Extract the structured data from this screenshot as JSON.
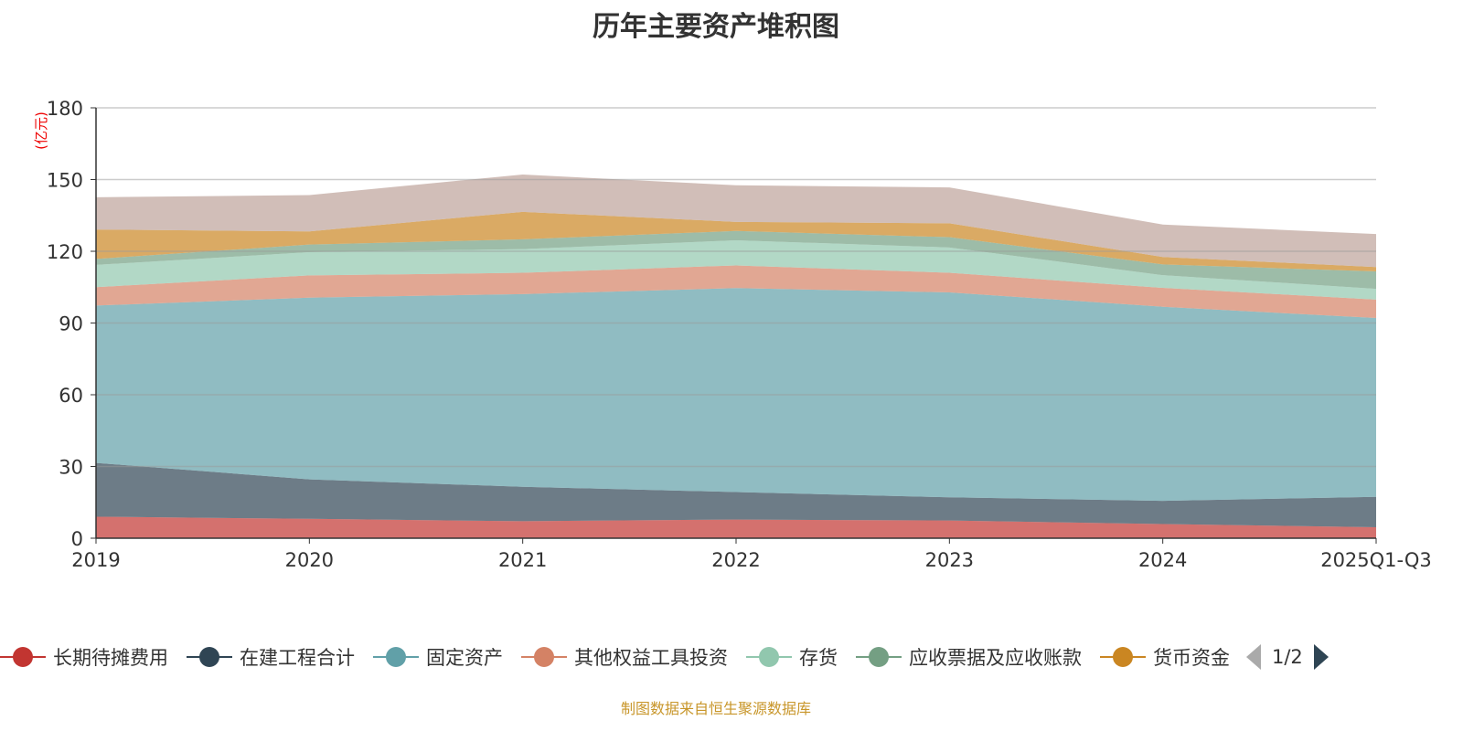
{
  "chart_data": {
    "type": "area",
    "stacked": true,
    "title": "历年主要资产堆积图",
    "ylabel": "(亿元)",
    "xlabel": "",
    "ylim": [
      0,
      180
    ],
    "yticks": [
      "0",
      "30",
      "60",
      "90",
      "120",
      "150",
      "180"
    ],
    "grid": true,
    "legend_position": "bottom",
    "categories": [
      "2019",
      "2020",
      "2021",
      "2022",
      "2023",
      "2024",
      "2025Q1-Q3"
    ],
    "series": [
      {
        "name": "长期待摊费用",
        "color": "#c23531",
        "values": [
          9.0,
          8.1,
          7.1,
          7.8,
          7.4,
          5.9,
          4.6
        ]
      },
      {
        "name": "在建工程合计",
        "color": "#2f4554",
        "values": [
          22.5,
          16.5,
          14.4,
          11.5,
          9.7,
          9.7,
          12.7
        ]
      },
      {
        "name": "固定资产",
        "color": "#61a0a8",
        "values": [
          65.8,
          76.0,
          80.6,
          85.3,
          85.7,
          81.2,
          74.8
        ]
      },
      {
        "name": "其他权益工具投资",
        "color": "#d48265",
        "values": [
          7.7,
          9.3,
          8.9,
          9.5,
          8.2,
          7.9,
          7.7
        ]
      },
      {
        "name": "存货",
        "color": "#91c7ae",
        "values": [
          9.3,
          9.7,
          9.9,
          10.5,
          10.6,
          5.3,
          4.5
        ]
      },
      {
        "name": "应收票据及应收账款",
        "color": "#749f83",
        "values": [
          2.5,
          3.2,
          4.1,
          3.9,
          4.3,
          4.5,
          7.3
        ]
      },
      {
        "name": "货币资金",
        "color": "#ca8622",
        "values": [
          12.3,
          5.5,
          11.5,
          3.8,
          5.8,
          3.1,
          1.8
        ]
      },
      {
        "color": "#bda29a",
        "values": [
          13.5,
          15.2,
          15.6,
          15.3,
          15.0,
          13.6,
          13.8
        ]
      }
    ]
  },
  "legend": {
    "page": "1/2"
  },
  "source": "制图数据来自恒生聚源数据库"
}
